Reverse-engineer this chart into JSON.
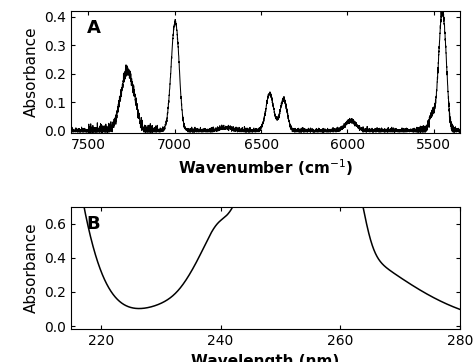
{
  "panel_A_label": "A",
  "panel_B_label": "B",
  "xlabel_A": "Wavenumber (cm$^{-1}$)",
  "xlabel_B": "Wavelength (nm)",
  "ylabel": "Absorbance",
  "xlim_A": [
    7600,
    5350
  ],
  "xlim_B": [
    215,
    280
  ],
  "ylim_A": [
    -0.01,
    0.42
  ],
  "ylim_B": [
    -0.02,
    0.7
  ],
  "xticks_A": [
    7500,
    7000,
    6500,
    6000,
    5500
  ],
  "xticks_B": [
    220,
    240,
    260,
    280
  ],
  "yticks_A": [
    0.0,
    0.1,
    0.2,
    0.3,
    0.4
  ],
  "yticks_B": [
    0.0,
    0.2,
    0.4,
    0.6
  ],
  "line_color": "#000000",
  "background_color": "#ffffff",
  "label_fontsize": 11,
  "tick_fontsize": 10,
  "panel_label_fontsize": 13
}
